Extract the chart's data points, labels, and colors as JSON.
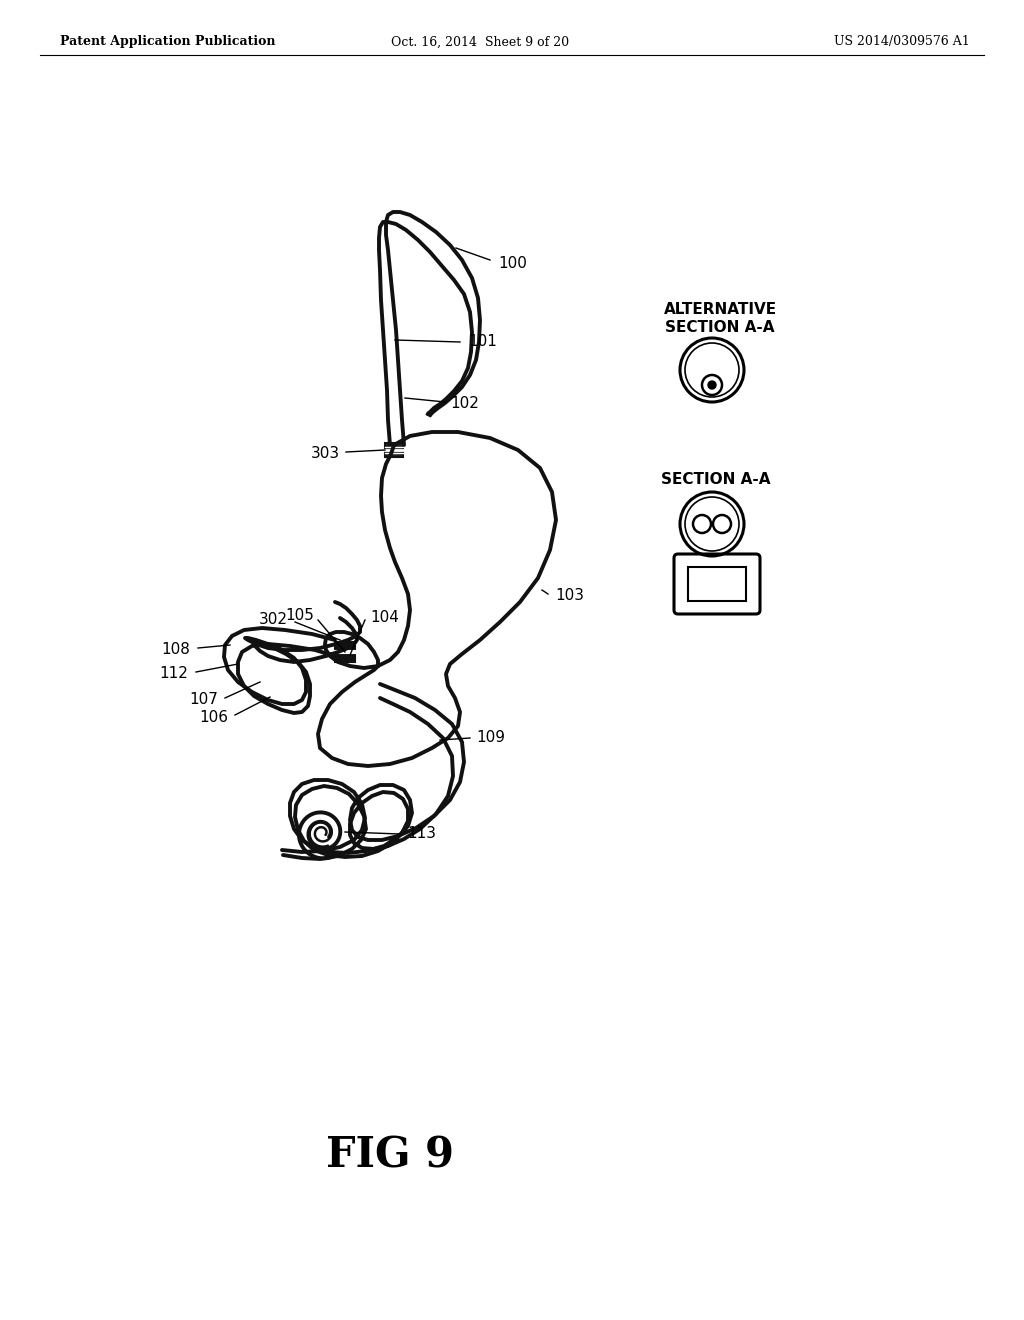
{
  "background_color": "#ffffff",
  "header_left": "Patent Application Publication",
  "header_center": "Oct. 16, 2014  Sheet 9 of 20",
  "header_right": "US 2014/0309576 A1",
  "figure_label": "FIG 9",
  "line_width": 2.8,
  "line_color": "#111111",
  "label_fontsize": 11
}
